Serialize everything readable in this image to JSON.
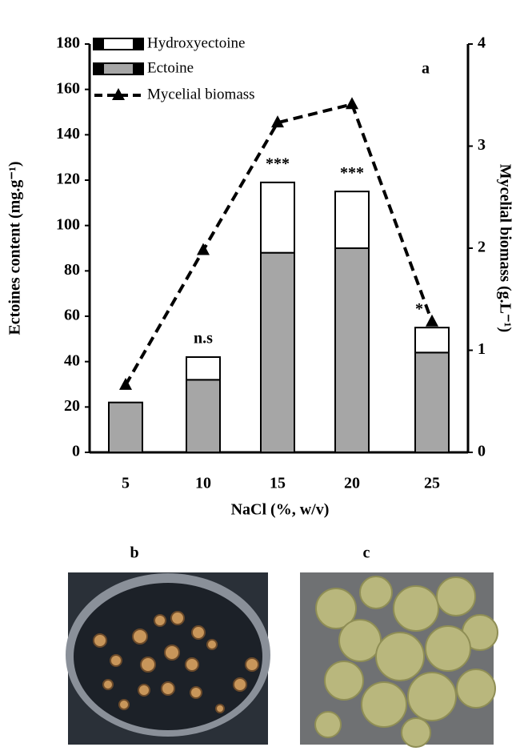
{
  "chart_data": {
    "type": "bar",
    "panel_label": "a",
    "xlabel": "NaCl (%, w/v)",
    "ylabel": "Ectoines content (mg.g⁻¹)",
    "y2label": "Mycelial biomass (g.L⁻¹)",
    "categories": [
      "5",
      "10",
      "15",
      "20",
      "25"
    ],
    "series": [
      {
        "name": "Ectoine",
        "color": "#a6a6a6",
        "values": [
          22,
          32,
          88,
          90,
          44
        ]
      },
      {
        "name": "Hydroxyectoine",
        "color": "#ffffff",
        "values": [
          0,
          10,
          31,
          25,
          11
        ]
      },
      {
        "name": "Mycelial biomass",
        "color": "#000000",
        "type": "line",
        "axis": "y2",
        "values": [
          0.66,
          1.98,
          3.23,
          3.41,
          1.28
        ]
      }
    ],
    "annotations": [
      null,
      "n.s",
      "***",
      "***",
      "*"
    ],
    "ylim": [
      0,
      180
    ],
    "yticks": [
      0,
      20,
      40,
      60,
      80,
      100,
      120,
      140,
      160,
      180
    ],
    "y2lim": [
      0,
      4
    ],
    "y2ticks": [
      0,
      1,
      2,
      3,
      4
    ]
  },
  "panels": [
    "b",
    "c"
  ]
}
